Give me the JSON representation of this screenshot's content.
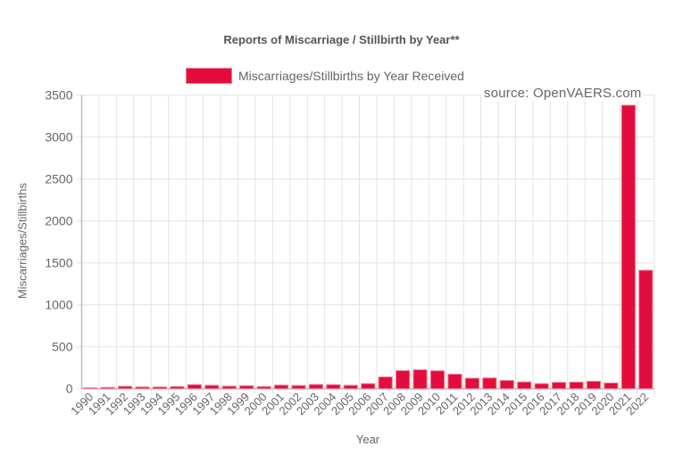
{
  "chart_data": {
    "type": "bar",
    "title": "Reports of Miscarriage / Stillbirth by Year**",
    "xlabel": "Year",
    "ylabel": "Miscarriages/Stillbirths",
    "ylim": [
      0,
      3500
    ],
    "yticks": [
      0,
      500,
      1000,
      1500,
      2000,
      2500,
      3000,
      3500
    ],
    "grid": true,
    "legend_position": "top",
    "annotation": "source: OpenVAERS.com",
    "categories": [
      "1990",
      "1991",
      "1992",
      "1993",
      "1994",
      "1995",
      "1996",
      "1997",
      "1998",
      "1999",
      "2000",
      "2001",
      "2002",
      "2003",
      "2004",
      "2005",
      "2006",
      "2007",
      "2008",
      "2009",
      "2010",
      "2011",
      "2012",
      "2013",
      "2014",
      "2015",
      "2016",
      "2017",
      "2018",
      "2019",
      "2020",
      "2021",
      "2022"
    ],
    "series": [
      {
        "name": "Miscarriages/Stillbirths by Year Received",
        "color": "#e30c3c",
        "values": [
          10,
          15,
          28,
          20,
          20,
          25,
          48,
          40,
          30,
          35,
          25,
          42,
          38,
          50,
          48,
          40,
          60,
          140,
          215,
          225,
          213,
          173,
          125,
          128,
          98,
          80,
          60,
          75,
          78,
          88,
          68,
          3380,
          1412
        ]
      }
    ]
  },
  "legend": {
    "label": "Miscarriages/Stillbirths by Year Received",
    "color": "#e30c3c"
  }
}
